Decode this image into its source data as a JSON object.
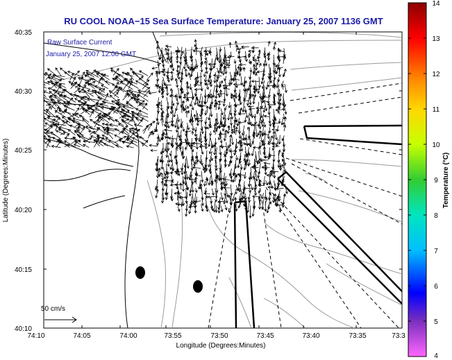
{
  "title": "RU COOL  NOAA−15  Sea Surface Temperature:  January 25, 2007 1136 GMT",
  "inset": {
    "line1": "Raw Surface Current",
    "line2": "January 25, 2007 12:00 GMT"
  },
  "scale_label": "50 cm/s",
  "x_axis": {
    "label": "Longitude (Degrees:Minutes)",
    "ticks": [
      "74:10",
      "74:05",
      "74:00",
      "73:55",
      "73:50",
      "73:45",
      "73:40",
      "73:35",
      "73:3"
    ]
  },
  "y_axis": {
    "label": "Latitude (Degrees:Minutes)",
    "ticks": [
      "40:35",
      "40:30",
      "40:25",
      "40:20",
      "40:15",
      "40:10"
    ]
  },
  "colorbar": {
    "label": "Temperature (°C)",
    "ticks": [
      "14",
      "13",
      "12",
      "11",
      "10",
      "9",
      "8",
      "7",
      "6",
      "5",
      "4"
    ],
    "colors": [
      "#8b0000",
      "#ff0000",
      "#ff8c00",
      "#ffd700",
      "#c8ff00",
      "#32cd32",
      "#00e5c0",
      "#00bfff",
      "#0000ff",
      "#7b2fbe",
      "#ff66ff"
    ]
  },
  "colors": {
    "title": "#1a1aa6",
    "inset_text": "#1a1aa6",
    "coast": "#000000",
    "bathy": "#999999",
    "arrows": "#000000"
  }
}
